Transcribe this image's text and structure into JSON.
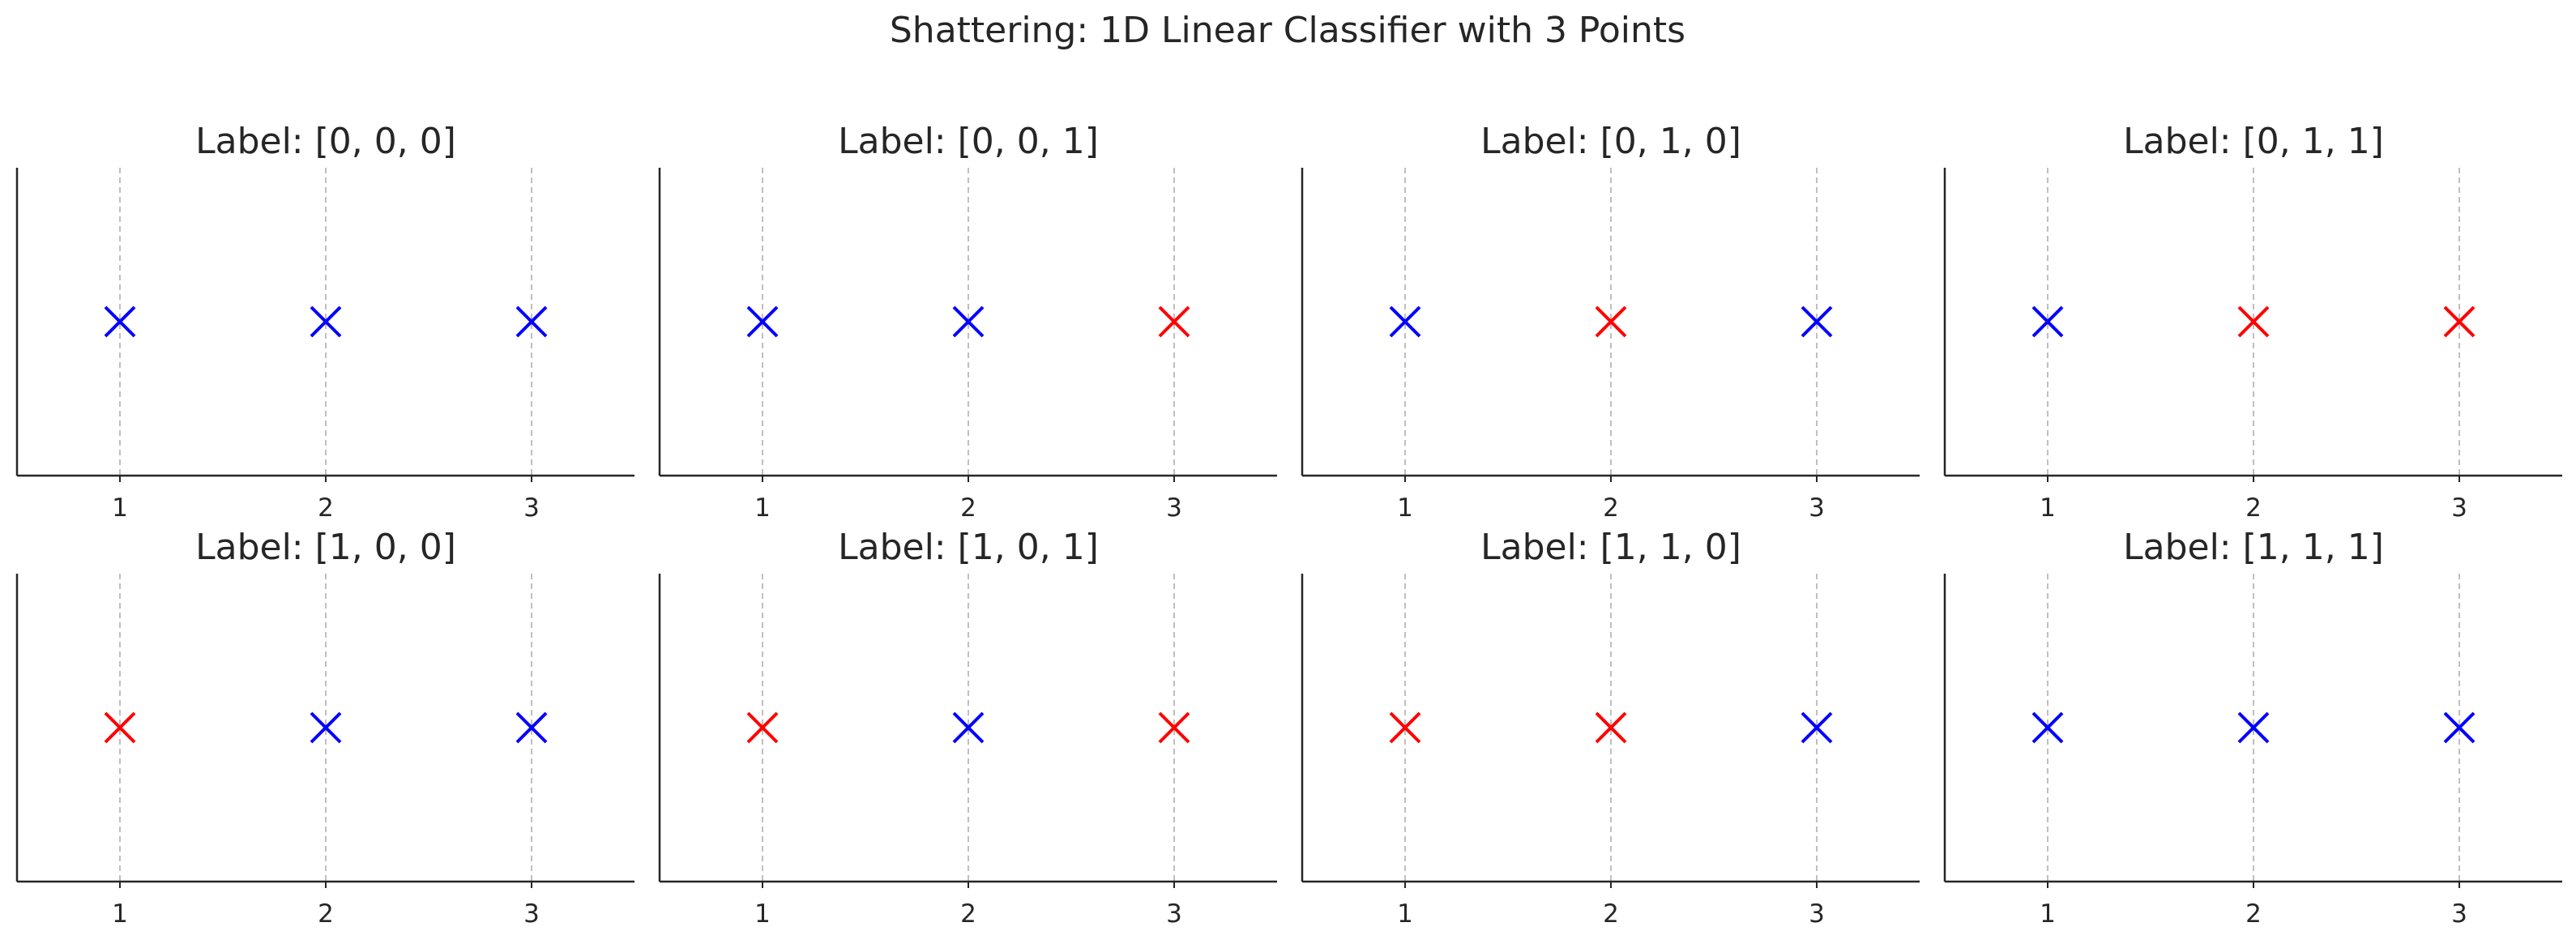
{
  "chart_data": {
    "type": "scatter",
    "suptitle": "Shattering: 1D Linear Classifier with 3 Points",
    "x": [
      1,
      2,
      3
    ],
    "xticks": [
      "1",
      "2",
      "3"
    ],
    "xlim": [
      0.5,
      3.5
    ],
    "ylim": [
      -1,
      1
    ],
    "grid": "x-only, dashed",
    "marker": "x",
    "colors": {
      "0": "#0000ff",
      "1": "#ff0000"
    },
    "panels": [
      {
        "title": "Label: [0, 0, 0]",
        "labels": [
          0,
          0,
          0
        ],
        "point_colors": [
          0,
          0,
          0
        ]
      },
      {
        "title": "Label: [0, 0, 1]",
        "labels": [
          0,
          0,
          1
        ],
        "point_colors": [
          0,
          0,
          1
        ]
      },
      {
        "title": "Label: [0, 1, 0]",
        "labels": [
          0,
          1,
          0
        ],
        "point_colors": [
          0,
          1,
          0
        ]
      },
      {
        "title": "Label: [0, 1, 1]",
        "labels": [
          0,
          1,
          1
        ],
        "point_colors": [
          0,
          1,
          1
        ]
      },
      {
        "title": "Label: [1, 0, 0]",
        "labels": [
          1,
          0,
          0
        ],
        "point_colors": [
          1,
          0,
          0
        ]
      },
      {
        "title": "Label: [1, 0, 1]",
        "labels": [
          1,
          0,
          1
        ],
        "point_colors": [
          1,
          0,
          1
        ]
      },
      {
        "title": "Label: [1, 1, 0]",
        "labels": [
          1,
          1,
          0
        ],
        "point_colors": [
          1,
          1,
          0
        ]
      },
      {
        "title": "Label: [1, 1, 1]",
        "labels": [
          1,
          1,
          1
        ],
        "point_colors": [
          0,
          0,
          0
        ]
      }
    ]
  }
}
